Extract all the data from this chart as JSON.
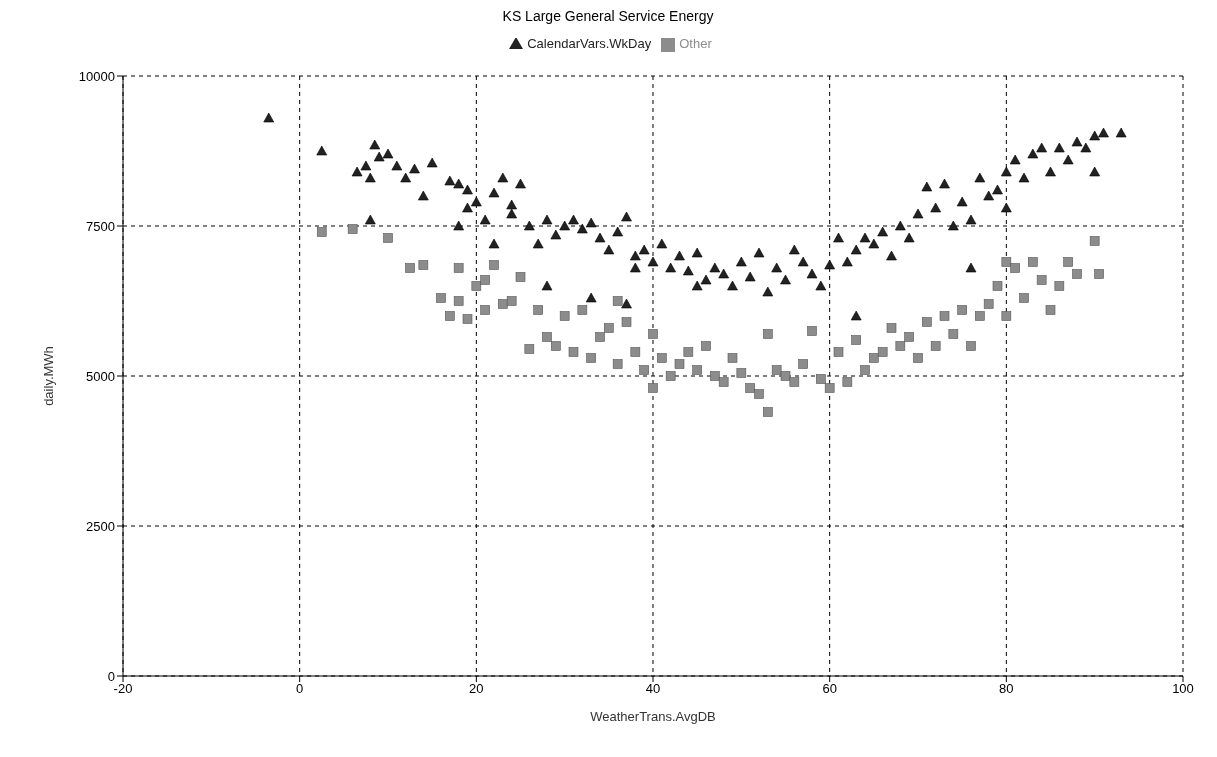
{
  "chart_data": {
    "type": "scatter",
    "title": "KS Large General Service Energy",
    "xlabel": "WeatherTrans.AvgDB",
    "ylabel": "daily.MWh",
    "xlim": [
      -20,
      100
    ],
    "xticks": [
      -20,
      0,
      20,
      40,
      60,
      80,
      100
    ],
    "ylim": [
      0,
      10000
    ],
    "yticks": [
      0,
      2500,
      5000,
      7500,
      10000
    ],
    "grid": true,
    "legend": "top",
    "series": [
      {
        "name": "CalendarVars.WkDay",
        "color": "#222222",
        "marker": "triangle",
        "x": [
          -3.5,
          2.5,
          6.5,
          7.5,
          8,
          8.5,
          9,
          8,
          10,
          11,
          12,
          13,
          14,
          15,
          17,
          18,
          19,
          18,
          19,
          20,
          21,
          22,
          23,
          24,
          25,
          22,
          24,
          26,
          27,
          28,
          29,
          30,
          31,
          32,
          33,
          34,
          35,
          36,
          37,
          38,
          39,
          40,
          41,
          42,
          43,
          44,
          45,
          46,
          47,
          48,
          49,
          50,
          51,
          52,
          53,
          54,
          55,
          56,
          57,
          58,
          59,
          60,
          61,
          62,
          63,
          64,
          65,
          66,
          67,
          68,
          69,
          70,
          71,
          72,
          73,
          74,
          75,
          76,
          77,
          78,
          79,
          80,
          80,
          81,
          82,
          83,
          84,
          85,
          86,
          87,
          88,
          89,
          90,
          90,
          91,
          93,
          28,
          33,
          37,
          76,
          63,
          38,
          45
        ],
        "values": [
          9300,
          8750,
          8400,
          8500,
          8300,
          8850,
          8650,
          7600,
          8700,
          8500,
          8300,
          8450,
          8000,
          8550,
          8250,
          8200,
          8100,
          7500,
          7800,
          7900,
          7600,
          8050,
          8300,
          7850,
          8200,
          7200,
          7700,
          7500,
          7200,
          7600,
          7350,
          7500,
          7600,
          7450,
          7550,
          7300,
          7100,
          7400,
          7650,
          7000,
          7100,
          6900,
          7200,
          6800,
          7000,
          6750,
          7050,
          6600,
          6800,
          6700,
          6500,
          6900,
          6650,
          7050,
          6400,
          6800,
          6600,
          7100,
          6900,
          6700,
          6500,
          6850,
          7300,
          6900,
          7100,
          7300,
          7200,
          7400,
          7000,
          7500,
          7300,
          7700,
          8150,
          7800,
          8200,
          7500,
          7900,
          7600,
          8300,
          8000,
          8100,
          8400,
          7800,
          8600,
          8300,
          8700,
          8800,
          8400,
          8800,
          8600,
          8900,
          8800,
          9000,
          8400,
          9050,
          9050,
          6500,
          6300,
          6200,
          6800,
          6000,
          6800,
          6500
        ]
      },
      {
        "name": "Other",
        "color": "#8c8c8c",
        "marker": "square",
        "x": [
          2.5,
          6,
          10,
          12.5,
          14,
          16,
          17,
          18,
          19,
          18,
          20,
          21,
          21,
          22,
          23,
          24,
          25,
          26,
          27,
          28,
          29,
          30,
          31,
          32,
          33,
          34,
          35,
          36,
          36,
          37,
          38,
          39,
          40,
          40,
          41,
          42,
          43,
          44,
          45,
          46,
          47,
          48,
          49,
          50,
          51,
          52,
          53,
          53,
          54,
          55,
          56,
          57,
          58,
          59,
          60,
          61,
          62,
          63,
          64,
          65,
          66,
          67,
          68,
          69,
          70,
          71,
          72,
          73,
          74,
          75,
          76,
          77,
          78,
          79,
          80,
          80,
          81,
          82,
          83,
          84,
          85,
          86,
          87,
          88,
          90,
          90.5
        ],
        "values": [
          7400,
          7450,
          7300,
          6800,
          6850,
          6300,
          6000,
          6250,
          5950,
          6800,
          6500,
          6600,
          6100,
          6850,
          6200,
          6250,
          6650,
          5450,
          6100,
          5650,
          5500,
          6000,
          5400,
          6100,
          5300,
          5650,
          5800,
          6250,
          5200,
          5900,
          5400,
          5100,
          4800,
          5700,
          5300,
          5000,
          5200,
          5400,
          5100,
          5500,
          5000,
          4900,
          5300,
          5050,
          4800,
          4700,
          5700,
          4400,
          5100,
          5000,
          4900,
          5200,
          5750,
          4950,
          4800,
          5400,
          4900,
          5600,
          5100,
          5300,
          5400,
          5800,
          5500,
          5650,
          5300,
          5900,
          5500,
          6000,
          5700,
          6100,
          5500,
          6000,
          6200,
          6500,
          6900,
          6000,
          6800,
          6300,
          6900,
          6600,
          6100,
          6500,
          6900,
          6700,
          7250,
          6700
        ]
      }
    ]
  }
}
